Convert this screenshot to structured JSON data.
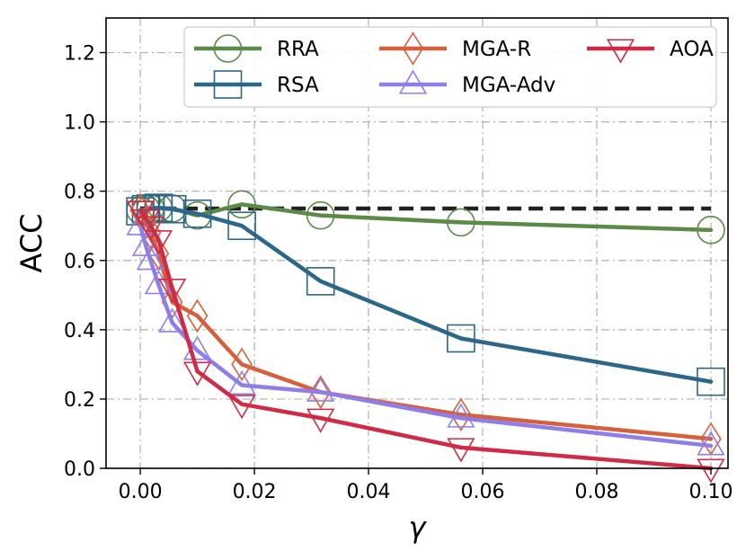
{
  "chart_data": {
    "type": "line",
    "xlabel": "γ",
    "ylabel": "ACC",
    "xlim": [
      -0.006,
      0.103
    ],
    "ylim": [
      0.0,
      1.3
    ],
    "x_ticks": [
      "0.00",
      "0.02",
      "0.04",
      "0.06",
      "0.08",
      "0.10"
    ],
    "y_ticks": [
      "0.0",
      "0.2",
      "0.4",
      "0.6",
      "0.8",
      "1.0",
      "1.2"
    ],
    "grid": true,
    "legend_position": "top-right",
    "reference_line": {
      "y": 0.75,
      "x_range": [
        0.0,
        0.1
      ],
      "color": "#222222",
      "style": "dashed"
    },
    "series": [
      {
        "name": "RRA",
        "color": "#5b8a46",
        "marker": "circle",
        "x": [
          0.0,
          0.001,
          0.0018,
          0.0032,
          0.0056,
          0.01,
          0.0178,
          0.0316,
          0.0562,
          0.1
        ],
        "y": [
          0.745,
          0.748,
          0.75,
          0.752,
          0.75,
          0.73,
          0.762,
          0.73,
          0.71,
          0.688
        ]
      },
      {
        "name": "RSA",
        "color": "#2c6689",
        "marker": "square",
        "x": [
          0.0,
          0.001,
          0.0018,
          0.0032,
          0.0056,
          0.01,
          0.0178,
          0.0316,
          0.0562,
          0.1
        ],
        "y": [
          0.742,
          0.748,
          0.75,
          0.752,
          0.748,
          0.735,
          0.7,
          0.54,
          0.375,
          0.25
        ]
      },
      {
        "name": "MGA-R",
        "color": "#d6603b",
        "marker": "diamond",
        "x": [
          0.0,
          0.001,
          0.0018,
          0.0032,
          0.0056,
          0.01,
          0.0178,
          0.0316,
          0.0562,
          0.1
        ],
        "y": [
          0.745,
          0.71,
          0.68,
          0.62,
          0.48,
          0.44,
          0.3,
          0.22,
          0.155,
          0.085
        ]
      },
      {
        "name": "MGA-Adv",
        "color": "#8f7ee8",
        "marker": "triangle-up",
        "x": [
          0.0,
          0.001,
          0.0018,
          0.0032,
          0.0056,
          0.01,
          0.0178,
          0.0316,
          0.0562,
          0.1
        ],
        "y": [
          0.7,
          0.64,
          0.6,
          0.53,
          0.42,
          0.34,
          0.24,
          0.22,
          0.145,
          0.065
        ]
      },
      {
        "name": "AOA",
        "color": "#cf2b45",
        "marker": "triangle-down",
        "x": [
          0.0,
          0.001,
          0.0018,
          0.0032,
          0.0056,
          0.01,
          0.0178,
          0.0316,
          0.0562,
          0.1
        ],
        "y": [
          0.745,
          0.72,
          0.7,
          0.66,
          0.52,
          0.28,
          0.185,
          0.145,
          0.06,
          0.0
        ]
      }
    ]
  }
}
